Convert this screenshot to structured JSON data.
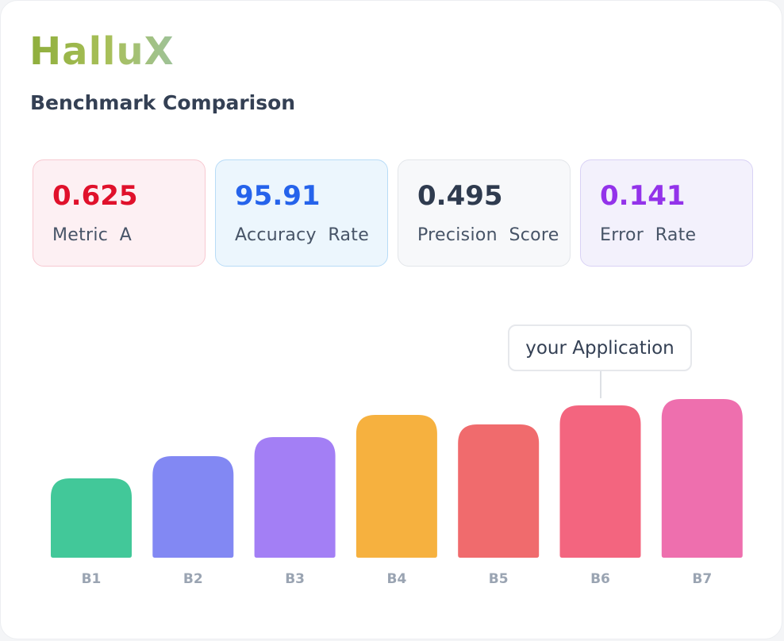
{
  "brand": "HalluX",
  "subtitle": "Benchmark Comparison",
  "metrics": [
    {
      "value": "0.625",
      "label": "Metric  A",
      "value_color": "#e0112b"
    },
    {
      "value": "95.91",
      "label": "Accuracy  Rate",
      "value_color": "#2563eb"
    },
    {
      "value": "0.495",
      "label": "Precision  Score",
      "value_color": "#2f3b4f"
    },
    {
      "value": "0.141",
      "label": "Error  Rate",
      "value_color": "#9333ea"
    }
  ],
  "callout": {
    "text": "your Application",
    "target_category": "B6"
  },
  "chart_data": {
    "type": "bar",
    "categories": [
      "B1",
      "B2",
      "B3",
      "B4",
      "B5",
      "B6",
      "B7"
    ],
    "values": [
      100,
      128,
      152,
      180,
      168,
      192,
      200
    ],
    "colors": [
      "#42c899",
      "#8288f3",
      "#a37ff5",
      "#f6b13f",
      "#f06b6d",
      "#f3657f",
      "#ee6fae"
    ],
    "grid": false,
    "legend": "none",
    "title": "",
    "xlabel": "",
    "ylabel": "",
    "ylim": [
      0,
      200
    ]
  }
}
